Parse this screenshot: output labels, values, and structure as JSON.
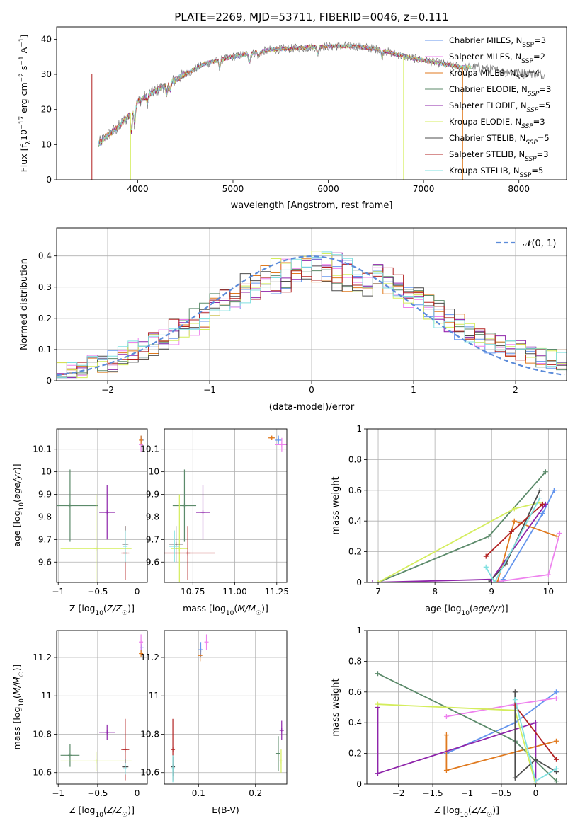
{
  "figure_title": "PLATE=2269, MJD=53711, FIBERID=0046, z=0.111",
  "colors": {
    "Chabrier MILES": "#6495ed",
    "Salpeter MILES": "#ee82ee",
    "Kroupa MILES": "#e07a1f",
    "Chabrier ELODIE": "#5b8a6a",
    "Salpeter ELODIE": "#8e24aa",
    "Kroupa ELODIE": "#d4ed5c",
    "Chabrier STELIB": "#4d4d4d",
    "Salpeter STELIB": "#b22222",
    "Kroupa STELIB": "#7fe0e0",
    "gaussian": "#5b8bd9"
  },
  "chart_data": [
    {
      "id": "spectrum",
      "type": "line",
      "xlabel": "wavelength [Angstrom, rest frame]",
      "ylabel": "Flux [f_λ10^-17 erg cm^-2 s^-1 A^-1]",
      "xlim": [
        3150,
        8500
      ],
      "ylim": [
        0,
        43.5
      ],
      "xticks": [
        4000,
        5000,
        6000,
        7000,
        8000
      ],
      "yticks": [
        0,
        10,
        20,
        30,
        40
      ],
      "grid": false,
      "legend_position": "top-right",
      "legend": [
        {
          "label": "Chabrier MILES, N_SSP=3",
          "color_key": "Chabrier MILES"
        },
        {
          "label": "Salpeter MILES, N_SSP=2",
          "color_key": "Salpeter MILES"
        },
        {
          "label": "Kroupa MILES, N_SSP=4",
          "color_key": "Kroupa MILES"
        },
        {
          "label": "Chabrier ELODIE, N_SSP=3",
          "color_key": "Chabrier ELODIE"
        },
        {
          "label": "Salpeter ELODIE, N_SSP=5",
          "color_key": "Salpeter ELODIE"
        },
        {
          "label": "Kroupa ELODIE, N_SSP=3",
          "color_key": "Kroupa ELODIE"
        },
        {
          "label": "Chabrier STELIB, N_SSP=5",
          "color_key": "Chabrier STELIB"
        },
        {
          "label": "Salpeter STELIB, N_SSP=3",
          "color_key": "Salpeter STELIB"
        },
        {
          "label": "Kroupa STELIB, N_SSP=5",
          "color_key": "Kroupa STELIB"
        }
      ],
      "continuum": [
        [
          3580,
          10
        ],
        [
          3700,
          13
        ],
        [
          3800,
          15
        ],
        [
          3900,
          18
        ],
        [
          3990,
          22
        ],
        [
          4100,
          24
        ],
        [
          4300,
          27
        ],
        [
          4500,
          30
        ],
        [
          4700,
          33
        ],
        [
          5000,
          35
        ],
        [
          5200,
          36
        ],
        [
          5400,
          37
        ],
        [
          5700,
          37.5
        ],
        [
          6000,
          38
        ],
        [
          6300,
          38
        ],
        [
          6550,
          37
        ],
        [
          6800,
          35
        ],
        [
          7000,
          34
        ],
        [
          7200,
          33
        ],
        [
          7400,
          32
        ],
        [
          7600,
          32
        ],
        [
          7800,
          31
        ],
        [
          8000,
          30.5
        ],
        [
          8250,
          30
        ]
      ]
    },
    {
      "id": "residuals",
      "type": "line",
      "xlabel": "(data-model)/error",
      "ylabel": "Normed distribution",
      "xlim": [
        -2.5,
        2.5
      ],
      "ylim": [
        0,
        0.49
      ],
      "xticks": [
        -2,
        -1,
        0,
        1,
        2
      ],
      "yticks": [
        0.0,
        0.1,
        0.2,
        0.3,
        0.4
      ],
      "grid": true,
      "legend_position": "top-right",
      "legend": [
        {
          "label": "𝒩(0, 1)",
          "color_key": "gaussian",
          "style": "dashed"
        }
      ],
      "gaussian": {
        "mean": 0,
        "sigma": 1
      }
    },
    {
      "id": "age_vs_Z",
      "type": "scatter",
      "xlabel": "Z [log10(Z/Z☉)]",
      "ylabel": "age  [log10(age/yr)]",
      "xlim": [
        -1.02,
        0.13
      ],
      "ylim": [
        9.51,
        10.19
      ],
      "xticks": [
        -1.0,
        -0.5,
        0.0
      ],
      "yticks": [
        9.6,
        9.7,
        9.8,
        9.9,
        10.0,
        10.1
      ],
      "grid": true,
      "points": [
        {
          "model": "Chabrier ELODIE",
          "x": -0.85,
          "y": 9.85,
          "xerr": 0.35,
          "yerr": 0.16
        },
        {
          "model": "Kroupa ELODIE",
          "x": -0.52,
          "y": 9.66,
          "xerr": 0.45,
          "yerr": 0.24
        },
        {
          "model": "Salpeter ELODIE",
          "x": -0.38,
          "y": 9.82,
          "xerr": 0.1,
          "yerr": 0.12
        },
        {
          "model": "Salpeter STELIB",
          "x": -0.15,
          "y": 9.64,
          "xerr": 0.05,
          "yerr": 0.12
        },
        {
          "model": "Chabrier STELIB",
          "x": -0.15,
          "y": 9.68,
          "xerr": 0.04,
          "yerr": 0.08
        },
        {
          "model": "Kroupa STELIB",
          "x": -0.15,
          "y": 9.67,
          "xerr": 0.03,
          "yerr": 0.07
        },
        {
          "model": "Chabrier MILES",
          "x": 0.06,
          "y": 10.14,
          "xerr": 0.02,
          "yerr": 0.02
        },
        {
          "model": "Salpeter MILES",
          "x": 0.05,
          "y": 10.12,
          "xerr": 0.02,
          "yerr": 0.03
        },
        {
          "model": "Kroupa MILES",
          "x": 0.05,
          "y": 10.14,
          "xerr": 0.02,
          "yerr": 0.02
        }
      ]
    },
    {
      "id": "age_vs_mass",
      "type": "scatter",
      "xlabel": "mass [log10(M/M☉)]",
      "ylabel": "",
      "xlim": [
        10.58,
        11.31
      ],
      "ylim": [
        9.51,
        10.19
      ],
      "xticks": [
        10.75,
        11.0,
        11.25
      ],
      "xtick_labels": [
        "10.75",
        "11.00",
        "11.25"
      ],
      "yticks": [
        9.6,
        9.7,
        9.8,
        9.9,
        10.0,
        10.1
      ],
      "grid": true,
      "points": [
        {
          "model": "Chabrier ELODIE",
          "x": 10.7,
          "y": 9.85,
          "xerr": 0.07,
          "yerr": 0.16
        },
        {
          "model": "Kroupa ELODIE",
          "x": 10.67,
          "y": 9.66,
          "xerr": 0.05,
          "yerr": 0.24
        },
        {
          "model": "Salpeter ELODIE",
          "x": 10.81,
          "y": 9.82,
          "xerr": 0.04,
          "yerr": 0.12
        },
        {
          "model": "Salpeter STELIB",
          "x": 10.72,
          "y": 9.64,
          "xerr": 0.16,
          "yerr": 0.12
        },
        {
          "model": "Chabrier STELIB",
          "x": 10.65,
          "y": 9.68,
          "xerr": 0.04,
          "yerr": 0.08
        },
        {
          "model": "Kroupa STELIB",
          "x": 10.64,
          "y": 9.67,
          "xerr": 0.03,
          "yerr": 0.07
        },
        {
          "model": "Chabrier MILES",
          "x": 11.26,
          "y": 10.14,
          "xerr": 0.02,
          "yerr": 0.02
        },
        {
          "model": "Salpeter MILES",
          "x": 11.28,
          "y": 10.12,
          "xerr": 0.04,
          "yerr": 0.03
        },
        {
          "model": "Kroupa MILES",
          "x": 11.22,
          "y": 10.15,
          "xerr": 0.02,
          "yerr": 0.01
        }
      ]
    },
    {
      "id": "weight_vs_age",
      "type": "line",
      "xlabel": "age  [log10(age/yr)]",
      "ylabel": "mass weight",
      "xlim": [
        6.8,
        10.32
      ],
      "ylim": [
        0.0,
        1.0
      ],
      "xticks": [
        7,
        8,
        9,
        10
      ],
      "yticks": [
        0.0,
        0.2,
        0.4,
        0.6,
        0.8,
        1.0
      ],
      "grid": true,
      "series": [
        {
          "model": "Chabrier MILES",
          "points": [
            [
              9.2,
              0.02
            ],
            [
              9.9,
              0.45
            ],
            [
              10.1,
              0.6
            ]
          ]
        },
        {
          "model": "Salpeter MILES",
          "points": [
            [
              9.0,
              0.0
            ],
            [
              10.0,
              0.05
            ],
            [
              10.2,
              0.32
            ]
          ]
        },
        {
          "model": "Kroupa MILES",
          "points": [
            [
              9.1,
              0.0
            ],
            [
              9.4,
              0.4
            ],
            [
              10.15,
              0.3
            ]
          ]
        },
        {
          "model": "Chabrier ELODIE",
          "points": [
            [
              7.0,
              0.0
            ],
            [
              8.95,
              0.3
            ],
            [
              9.95,
              0.72
            ]
          ]
        },
        {
          "model": "Salpeter ELODIE",
          "points": [
            [
              6.9,
              0.0
            ],
            [
              9.0,
              0.02
            ],
            [
              9.95,
              0.51
            ]
          ]
        },
        {
          "model": "Kroupa ELODIE",
          "points": [
            [
              7.0,
              0.0
            ],
            [
              9.4,
              0.48
            ],
            [
              9.85,
              0.52
            ]
          ]
        },
        {
          "model": "Chabrier STELIB",
          "points": [
            [
              8.95,
              0.0
            ],
            [
              9.25,
              0.12
            ],
            [
              9.85,
              0.6
            ]
          ]
        },
        {
          "model": "Salpeter STELIB",
          "points": [
            [
              8.9,
              0.17
            ],
            [
              9.35,
              0.33
            ],
            [
              9.9,
              0.51
            ]
          ]
        },
        {
          "model": "Kroupa STELIB",
          "points": [
            [
              8.9,
              0.1
            ],
            [
              9.05,
              0.0
            ],
            [
              9.85,
              0.55
            ]
          ]
        }
      ]
    },
    {
      "id": "mass_vs_Z",
      "type": "scatter",
      "xlabel": "Z [log10(Z/Z☉)]",
      "ylabel": "mass [log10(M/M☉)]",
      "xlim": [
        -1.02,
        0.13
      ],
      "ylim": [
        10.54,
        11.34
      ],
      "xticks": [
        -1.0,
        -0.5,
        0.0
      ],
      "yticks": [
        10.6,
        10.8,
        11.0,
        11.2
      ],
      "grid": true,
      "points": [
        {
          "model": "Chabrier ELODIE",
          "x": -0.85,
          "y": 10.69,
          "xerr": 0.12,
          "yerr": 0.06
        },
        {
          "model": "Kroupa ELODIE",
          "x": -0.52,
          "y": 10.66,
          "xerr": 0.45,
          "yerr": 0.05
        },
        {
          "model": "Salpeter ELODIE",
          "x": -0.38,
          "y": 10.81,
          "xerr": 0.1,
          "yerr": 0.04
        },
        {
          "model": "Salpeter STELIB",
          "x": -0.15,
          "y": 10.72,
          "xerr": 0.05,
          "yerr": 0.16
        },
        {
          "model": "Chabrier STELIB",
          "x": -0.15,
          "y": 10.63,
          "xerr": 0.04,
          "yerr": 0.04
        },
        {
          "model": "Kroupa STELIB",
          "x": -0.15,
          "y": 10.62,
          "xerr": 0.03,
          "yerr": 0.03
        },
        {
          "model": "Chabrier MILES",
          "x": 0.06,
          "y": 11.25,
          "xerr": 0.02,
          "yerr": 0.02
        },
        {
          "model": "Salpeter MILES",
          "x": 0.05,
          "y": 11.28,
          "xerr": 0.02,
          "yerr": 0.04
        },
        {
          "model": "Kroupa MILES",
          "x": 0.05,
          "y": 11.22,
          "xerr": 0.02,
          "yerr": 0.02
        }
      ]
    },
    {
      "id": "mass_vs_ebv",
      "type": "scatter",
      "xlabel": "E(B-V)",
      "ylabel": "",
      "xlim": [
        0.04,
        0.255
      ],
      "ylim": [
        10.54,
        11.34
      ],
      "xticks": [
        0.1,
        0.2
      ],
      "yticks": [
        10.6,
        10.8,
        11.0,
        11.2
      ],
      "grid": true,
      "points": [
        {
          "model": "Salpeter STELIB",
          "x": 0.055,
          "y": 10.72,
          "yerr": 0.16
        },
        {
          "model": "Chabrier STELIB",
          "x": 0.055,
          "y": 10.63,
          "yerr": 0.05
        },
        {
          "model": "Kroupa STELIB",
          "x": 0.055,
          "y": 10.62,
          "yerr": 0.07
        },
        {
          "model": "Chabrier MILES",
          "x": 0.104,
          "y": 11.24,
          "yerr": 0.04
        },
        {
          "model": "Kroupa MILES",
          "x": 0.103,
          "y": 11.21,
          "yerr": 0.03
        },
        {
          "model": "Salpeter MILES",
          "x": 0.114,
          "y": 11.28,
          "yerr": 0.04
        },
        {
          "model": "Chabrier ELODIE",
          "x": 0.24,
          "y": 10.7,
          "yerr": 0.09
        },
        {
          "model": "Kroupa ELODIE",
          "x": 0.245,
          "y": 10.66,
          "yerr": 0.06
        },
        {
          "model": "Salpeter ELODIE",
          "x": 0.246,
          "y": 10.82,
          "yerr": 0.05
        }
      ]
    },
    {
      "id": "weight_vs_Z",
      "type": "line",
      "xlabel": "Z [log10(Z/Z☉)]",
      "ylabel": "mass weight",
      "xlim": [
        -2.46,
        0.45
      ],
      "ylim": [
        0.0,
        1.0
      ],
      "xticks": [
        -2.0,
        -1.5,
        -1.0,
        -0.5,
        0.0
      ],
      "yticks": [
        0.0,
        0.2,
        0.4,
        0.6,
        0.8,
        1.0
      ],
      "grid": true,
      "series": [
        {
          "model": "Chabrier MILES",
          "points": [
            [
              -1.3,
              0.2
            ],
            [
              -0.3,
              0.4
            ],
            [
              0.3,
              0.6
            ]
          ]
        },
        {
          "model": "Salpeter MILES",
          "points": [
            [
              -1.3,
              0.44
            ],
            [
              -0.3,
              0.52
            ],
            [
              0.3,
              0.56
            ]
          ]
        },
        {
          "model": "Kroupa MILES",
          "points": [
            [
              -1.3,
              0.32
            ],
            [
              -1.3,
              0.09
            ],
            [
              0.3,
              0.28
            ]
          ]
        },
        {
          "model": "Chabrier ELODIE",
          "points": [
            [
              -2.3,
              0.72
            ],
            [
              -0.3,
              0.28
            ],
            [
              0.3,
              0.02
            ]
          ]
        },
        {
          "model": "Salpeter ELODIE",
          "points": [
            [
              -2.3,
              0.5
            ],
            [
              -2.3,
              0.07
            ],
            [
              0.0,
              0.4
            ],
            [
              0.0,
              0.0
            ]
          ]
        },
        {
          "model": "Kroupa ELODIE",
          "points": [
            [
              -2.3,
              0.52
            ],
            [
              -0.3,
              0.48
            ],
            [
              0.0,
              0.0
            ]
          ]
        },
        {
          "model": "Chabrier STELIB",
          "points": [
            [
              -0.3,
              0.6
            ],
            [
              -0.3,
              0.04
            ],
            [
              0.0,
              0.16
            ],
            [
              0.3,
              0.08
            ]
          ]
        },
        {
          "model": "Salpeter STELIB",
          "points": [
            [
              -0.3,
              0.51
            ],
            [
              0.3,
              0.16
            ]
          ]
        },
        {
          "model": "Kroupa STELIB",
          "points": [
            [
              -0.3,
              0.55
            ],
            [
              0.0,
              0.02
            ],
            [
              0.3,
              0.1
            ]
          ]
        }
      ]
    }
  ]
}
